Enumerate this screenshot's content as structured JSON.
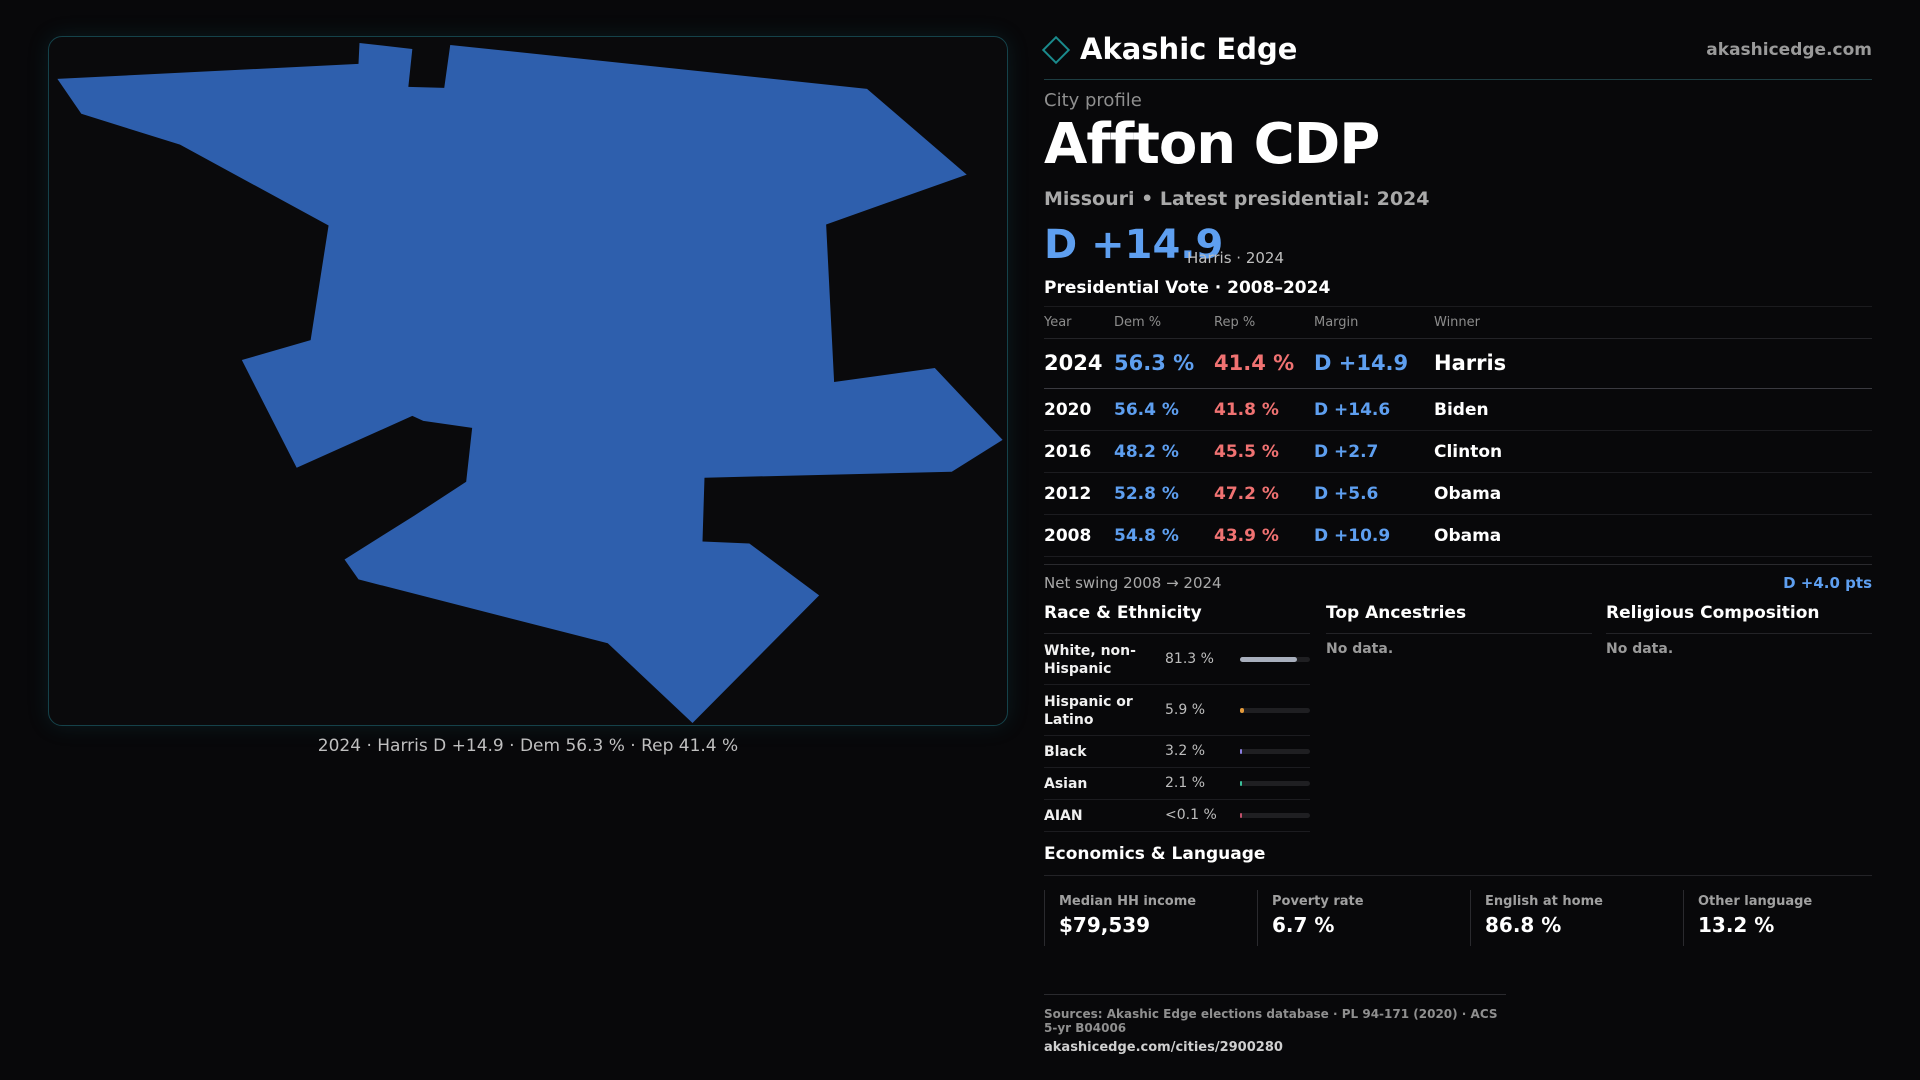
{
  "map": {
    "fill_color": "#2e5fad",
    "caption": "2024 · Harris D +14.9 · Dem 56.3 % · Rep 41.4 %"
  },
  "brand": {
    "name": "Akashic Edge",
    "url": "akashicedge.com"
  },
  "profile": {
    "eyebrow": "City profile",
    "title": "Affton CDP",
    "subtitle": "Missouri • Latest presidential: 2024",
    "margin": "D +14.9",
    "margin_note": "Harris · 2024"
  },
  "vote": {
    "title": "Presidential Vote · 2008–2024",
    "headers": {
      "year": "Year",
      "dem": "Dem %",
      "rep": "Rep %",
      "margin": "Margin",
      "winner": "Winner"
    },
    "rows": [
      {
        "year": "2024",
        "dem": "56.3 %",
        "rep": "41.4 %",
        "margin": "D +14.9",
        "winner": "Harris"
      },
      {
        "year": "2020",
        "dem": "56.4 %",
        "rep": "41.8 %",
        "margin": "D +14.6",
        "winner": "Biden"
      },
      {
        "year": "2016",
        "dem": "48.2 %",
        "rep": "45.5 %",
        "margin": "D +2.7",
        "winner": "Clinton"
      },
      {
        "year": "2012",
        "dem": "52.8 %",
        "rep": "47.2 %",
        "margin": "D +5.6",
        "winner": "Obama"
      },
      {
        "year": "2008",
        "dem": "54.8 %",
        "rep": "43.9 %",
        "margin": "D +10.9",
        "winner": "Obama"
      }
    ],
    "swing_label": "Net swing 2008 → 2024",
    "swing_value": "D +4.0 pts"
  },
  "race": {
    "title": "Race & Ethnicity",
    "rows": [
      {
        "label": "White, non-Hispanic",
        "pct": "81.3 %",
        "value": 81.3,
        "color": "#a8afbd"
      },
      {
        "label": "Hispanic or Latino",
        "pct": "5.9 %",
        "value": 5.9,
        "color": "#e39a3b"
      },
      {
        "label": "Black",
        "pct": "3.2 %",
        "value": 3.2,
        "color": "#8a7de0"
      },
      {
        "label": "Asian",
        "pct": "2.1 %",
        "value": 2.1,
        "color": "#3bbf9a"
      },
      {
        "label": "AIAN",
        "pct": "<0.1 %",
        "value": 0.1,
        "color": "#c0506a"
      }
    ]
  },
  "ancestries": {
    "title": "Top Ancestries",
    "empty": "No data."
  },
  "religion": {
    "title": "Religious Composition",
    "empty": "No data."
  },
  "economics": {
    "title": "Economics & Language",
    "cells": [
      {
        "label": "Median HH income",
        "value": "$79,539"
      },
      {
        "label": "Poverty rate",
        "value": "6.7 %"
      },
      {
        "label": "English at home",
        "value": "86.8 %"
      },
      {
        "label": "Other language",
        "value": "13.2 %"
      }
    ]
  },
  "footer": {
    "sources": "Sources: Akashic Edge elections database · PL 94-171 (2020) · ACS 5-yr B04006",
    "url": "akashicedge.com/cities/2900280"
  }
}
